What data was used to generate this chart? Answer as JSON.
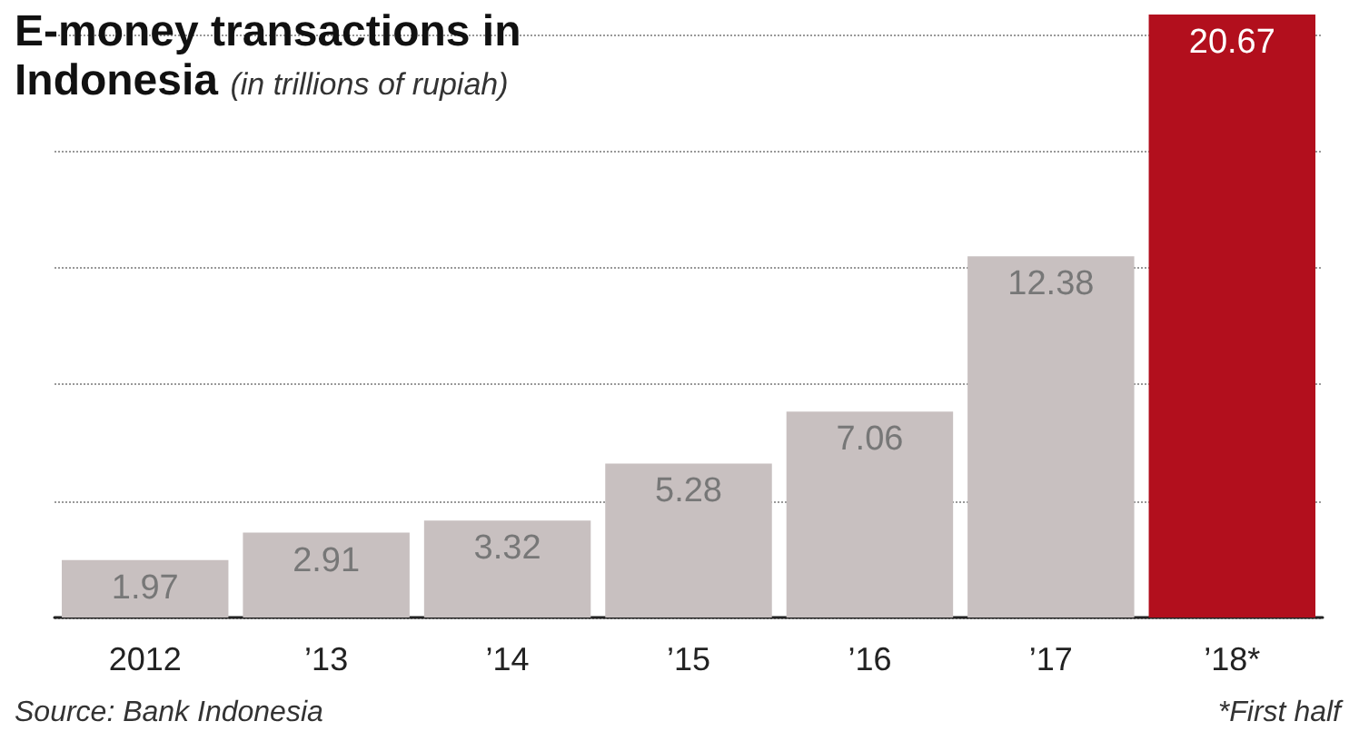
{
  "chart_data": {
    "type": "bar",
    "title": "E-money transactions in Indonesia",
    "subtitle": "(in trillions of rupiah)",
    "categories": [
      "2012",
      "’13",
      "’14",
      "’15",
      "’16",
      "’17",
      "’18*"
    ],
    "values": [
      1.97,
      2.91,
      3.32,
      5.28,
      7.06,
      12.38,
      20.67
    ],
    "colors": [
      "#c8c0c0",
      "#c8c0c0",
      "#c8c0c0",
      "#c8c0c0",
      "#c8c0c0",
      "#c8c0c0",
      "#b20f1d"
    ],
    "ylim": [
      0,
      20.67
    ],
    "yticks": [
      {
        "value": 0,
        "label": null
      },
      {
        "value": 4,
        "label": null
      },
      {
        "value": 8,
        "label": null
      },
      {
        "value": 12,
        "label": null
      },
      {
        "value": 16,
        "label": null
      },
      {
        "value": 20,
        "label": null
      }
    ],
    "grid": "y",
    "tick_labels": "x",
    "data_labels": true,
    "annotations": [
      "Source: Bank Indonesia",
      "*First half"
    ]
  }
}
